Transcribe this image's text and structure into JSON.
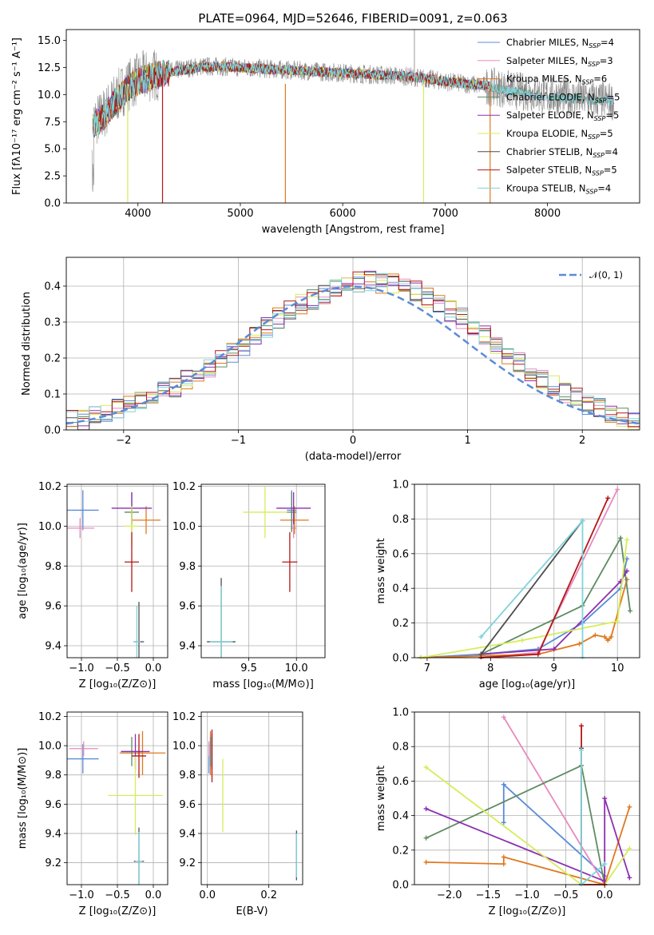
{
  "colors": {
    "c1": "#5b8bd9",
    "c2": "#e68ac0",
    "c3": "#e0781f",
    "c4": "#5e8c61",
    "c5": "#8b2fb0",
    "c6": "#d7ec5a",
    "c7": "#4d4d4d",
    "c8": "#b51717",
    "c9": "#7fd3da",
    "gauss": "#5b8bd9",
    "grid": "#b0b0b0"
  },
  "chart_data": [
    {
      "id": "spectrum",
      "type": "line",
      "title": "PLATE=0964, MJD=52646, FIBERID=0091, z=0.063",
      "xlabel": "wavelength [Angstrom, rest frame]",
      "ylabel": "Flux [fλ10⁻¹⁷ erg cm⁻² s⁻¹ A⁻¹]",
      "xlim": [
        3300,
        8900
      ],
      "ylim": [
        0,
        16
      ],
      "xticks": [
        "4000",
        "5000",
        "6000",
        "7000",
        "8000"
      ],
      "yticks": [
        "0.0",
        "2.5",
        "5.0",
        "7.5",
        "10.0",
        "12.5",
        "15.0"
      ],
      "grid": false,
      "legend_position": "top-right",
      "data_continuum": [
        [
          3550,
          7.4
        ],
        [
          3650,
          8.0
        ],
        [
          3750,
          9.3
        ],
        [
          3850,
          10.4
        ],
        [
          3950,
          11.2
        ],
        [
          4050,
          11.6
        ],
        [
          4200,
          11.9
        ],
        [
          4400,
          12.3
        ],
        [
          4600,
          12.6
        ],
        [
          4800,
          12.6
        ],
        [
          5000,
          12.5
        ],
        [
          5200,
          12.4
        ],
        [
          5400,
          12.3
        ],
        [
          5600,
          12.2
        ],
        [
          5800,
          12.1
        ],
        [
          6000,
          12.0
        ],
        [
          6200,
          11.9
        ],
        [
          6400,
          11.8
        ],
        [
          6600,
          11.7
        ],
        [
          6800,
          11.5
        ],
        [
          7000,
          11.2
        ],
        [
          7200,
          11.0
        ],
        [
          7400,
          10.8
        ],
        [
          7600,
          10.5
        ],
        [
          7800,
          10.2
        ],
        [
          8000,
          9.9
        ],
        [
          8200,
          9.8
        ],
        [
          8400,
          9.6
        ],
        [
          8600,
          9.4
        ]
      ],
      "model_continuum": [
        [
          3550,
          7.2
        ],
        [
          3650,
          7.8
        ],
        [
          3750,
          9.0
        ],
        [
          3850,
          10.1
        ],
        [
          3950,
          10.9
        ],
        [
          4050,
          11.4
        ],
        [
          4200,
          11.8
        ],
        [
          4400,
          12.2
        ],
        [
          4600,
          12.5
        ],
        [
          4800,
          12.6
        ],
        [
          5000,
          12.5
        ],
        [
          5200,
          12.4
        ],
        [
          5400,
          12.3
        ],
        [
          5600,
          12.2
        ],
        [
          5800,
          12.1
        ],
        [
          6000,
          12.0
        ],
        [
          6200,
          11.9
        ],
        [
          6400,
          11.8
        ],
        [
          6600,
          11.7
        ],
        [
          6800,
          11.5
        ],
        [
          7000,
          11.2
        ],
        [
          7200,
          11.0
        ],
        [
          7400,
          10.8
        ],
        [
          7500,
          10.6
        ]
      ],
      "legend": [
        {
          "label": "Chabrier MILES, N",
          "sub": "SSP",
          "suffix": "=4",
          "color": "#5b8bd9"
        },
        {
          "label": "Salpeter MILES, N",
          "sub": "SSP",
          "suffix": "=3",
          "color": "#e68ac0"
        },
        {
          "label": "Kroupa MILES, N",
          "sub": "SSP",
          "suffix": "=6",
          "color": "#e0781f"
        },
        {
          "label": "Chabrier ELODIE, N",
          "sub": "SSP",
          "suffix": "=5",
          "color": "#5e8c61"
        },
        {
          "label": "Salpeter ELODIE, N",
          "sub": "SSP",
          "suffix": "=5",
          "color": "#8b2fb0"
        },
        {
          "label": "Kroupa ELODIE, N",
          "sub": "SSP",
          "suffix": "=5",
          "color": "#d7ec5a"
        },
        {
          "label": "Chabrier STELIB, N",
          "sub": "SSP",
          "suffix": "=4",
          "color": "#4d4d4d"
        },
        {
          "label": "Salpeter STELIB, N",
          "sub": "SSP",
          "suffix": "=5",
          "color": "#b51717"
        },
        {
          "label": "Kroupa STELIB, N",
          "sub": "SSP",
          "suffix": "=4",
          "color": "#7fd3da"
        }
      ]
    },
    {
      "id": "residual_hist",
      "type": "line",
      "xlabel": "(data-model)/error",
      "ylabel": "Normed distribution",
      "xlim": [
        -2.5,
        2.5
      ],
      "ylim": [
        0,
        0.48
      ],
      "xticks": [
        "−2",
        "−1",
        "0",
        "1",
        "2"
      ],
      "xtick_values": [
        -2,
        -1,
        0,
        1,
        2
      ],
      "yticks": [
        "0.0",
        "0.1",
        "0.2",
        "0.3",
        "0.4"
      ],
      "ytick_values": [
        0,
        0.1,
        0.2,
        0.3,
        0.4
      ],
      "grid": true,
      "legend": {
        "label": "𝒩(0, 1)",
        "position": "top-right"
      },
      "bin_width": 0.1,
      "bin_start": -2.5,
      "base_heights": [
        0.025,
        0.028,
        0.035,
        0.045,
        0.058,
        0.07,
        0.085,
        0.1,
        0.11,
        0.12,
        0.14,
        0.155,
        0.175,
        0.195,
        0.215,
        0.235,
        0.26,
        0.285,
        0.31,
        0.33,
        0.35,
        0.365,
        0.375,
        0.39,
        0.405,
        0.41,
        0.415,
        0.41,
        0.405,
        0.4,
        0.385,
        0.37,
        0.355,
        0.33,
        0.31,
        0.285,
        0.26,
        0.235,
        0.21,
        0.19,
        0.165,
        0.145,
        0.125,
        0.105,
        0.09,
        0.072,
        0.06,
        0.045,
        0.035,
        0.025
      ]
    },
    {
      "id": "age_vs_Z",
      "type": "scatter",
      "xlabel": "Z [log₁₀(Z/Z⊙)]",
      "ylabel": "age  [log₁₀(age/yr)]",
      "xlim": [
        -1.2,
        0.2
      ],
      "ylim": [
        9.34,
        10.21
      ],
      "xticks": [
        "−1.0",
        "−0.5",
        "0.0"
      ],
      "xtick_values": [
        -1.0,
        -0.5,
        0.0
      ],
      "yticks": [
        "9.4",
        "9.6",
        "9.8",
        "10.0",
        "10.2"
      ],
      "ytick_values": [
        9.4,
        9.6,
        9.8,
        10.0,
        10.2
      ],
      "grid": true,
      "points": [
        {
          "x": -0.98,
          "y": 10.08,
          "ex": 0.22,
          "ey": 0.1,
          "color": "#5b8bd9"
        },
        {
          "x": -1.02,
          "y": 9.99,
          "ex": 0.2,
          "ey": 0.05,
          "color": "#e68ac0"
        },
        {
          "x": -0.1,
          "y": 10.03,
          "ex": 0.2,
          "ey": 0.07,
          "color": "#e0781f"
        },
        {
          "x": -0.3,
          "y": 10.07,
          "ex": 0.1,
          "ey": 0.1,
          "color": "#5e8c61"
        },
        {
          "x": -0.3,
          "y": 10.09,
          "ex": 0.28,
          "ey": 0.08,
          "color": "#8b2fb0"
        },
        {
          "x": -0.3,
          "y": 10.0,
          "ex": 0.1,
          "ey": 0.1,
          "color": "#d7ec5a"
        },
        {
          "x": -0.2,
          "y": 9.42,
          "ex": 0.07,
          "ey": 0.2,
          "color": "#4d4d4d"
        },
        {
          "x": -0.3,
          "y": 9.82,
          "ex": 0.1,
          "ey": 0.15,
          "color": "#b51717"
        },
        {
          "x": -0.23,
          "y": 9.42,
          "ex": 0.05,
          "ey": 0.18,
          "color": "#7fd3da"
        }
      ]
    },
    {
      "id": "age_vs_mass",
      "type": "scatter",
      "xlabel": "mass [log₁₀(M/M⊙)]",
      "xlim": [
        9.0,
        10.3
      ],
      "ylim": [
        9.34,
        10.21
      ],
      "xticks": [
        "9.5",
        "10.0"
      ],
      "xtick_values": [
        9.5,
        10.0
      ],
      "yticks": [
        "9.4",
        "9.6",
        "9.8",
        "10.0",
        "10.2"
      ],
      "ytick_values": [
        9.4,
        9.6,
        9.8,
        10.0,
        10.2
      ],
      "grid": true,
      "points": [
        {
          "x": 9.95,
          "y": 10.08,
          "ex": 0.05,
          "ey": 0.1,
          "color": "#5b8bd9"
        },
        {
          "x": 9.97,
          "y": 9.99,
          "ex": 0.03,
          "ey": 0.05,
          "color": "#e68ac0"
        },
        {
          "x": 9.98,
          "y": 10.03,
          "ex": 0.15,
          "ey": 0.07,
          "color": "#e0781f"
        },
        {
          "x": 9.95,
          "y": 10.07,
          "ex": 0.05,
          "ey": 0.1,
          "color": "#5e8c61"
        },
        {
          "x": 9.97,
          "y": 10.09,
          "ex": 0.18,
          "ey": 0.08,
          "color": "#8b2fb0"
        },
        {
          "x": 9.67,
          "y": 10.07,
          "ex": 0.23,
          "ey": 0.13,
          "color": "#d7ec5a"
        },
        {
          "x": 9.21,
          "y": 9.42,
          "ex": 0.15,
          "ey": 0.32,
          "color": "#4d4d4d"
        },
        {
          "x": 9.93,
          "y": 9.82,
          "ex": 0.08,
          "ey": 0.15,
          "color": "#b51717"
        },
        {
          "x": 9.21,
          "y": 9.42,
          "ex": 0.12,
          "ey": 0.28,
          "color": "#7fd3da"
        }
      ]
    },
    {
      "id": "mass_vs_Z",
      "type": "scatter",
      "xlabel": "Z [log₁₀(Z/Z⊙)]",
      "ylabel": "mass [log₁₀(M/M⊙)]",
      "xlim": [
        -1.2,
        0.2
      ],
      "ylim": [
        9.05,
        10.23
      ],
      "xticks": [
        "−1.0",
        "−0.5",
        "0.0"
      ],
      "xtick_values": [
        -1.0,
        -0.5,
        0.0
      ],
      "yticks": [
        "9.2",
        "9.4",
        "9.6",
        "9.8",
        "10.0",
        "10.2"
      ],
      "ytick_values": [
        9.2,
        9.4,
        9.6,
        9.8,
        10.0,
        10.2
      ],
      "grid": true,
      "points": [
        {
          "x": -0.98,
          "y": 9.91,
          "ex": 0.22,
          "ey": 0.1,
          "color": "#5b8bd9"
        },
        {
          "x": -0.97,
          "y": 9.98,
          "ex": 0.2,
          "ey": 0.05,
          "color": "#e68ac0"
        },
        {
          "x": -0.15,
          "y": 9.95,
          "ex": 0.32,
          "ey": 0.15,
          "color": "#e0781f"
        },
        {
          "x": -0.3,
          "y": 9.96,
          "ex": 0.15,
          "ey": 0.1,
          "color": "#5e8c61"
        },
        {
          "x": -0.25,
          "y": 9.96,
          "ex": 0.2,
          "ey": 0.12,
          "color": "#8b2fb0"
        },
        {
          "x": -0.25,
          "y": 9.66,
          "ex": 0.38,
          "ey": 0.27,
          "color": "#d7ec5a"
        },
        {
          "x": -0.2,
          "y": 9.21,
          "ex": 0.07,
          "ey": 0.23,
          "color": "#4d4d4d"
        },
        {
          "x": -0.2,
          "y": 9.93,
          "ex": 0.1,
          "ey": 0.15,
          "color": "#b51717"
        },
        {
          "x": -0.2,
          "y": 9.21,
          "ex": 0.05,
          "ey": 0.2,
          "color": "#7fd3da"
        }
      ]
    },
    {
      "id": "mass_vs_ebv",
      "type": "scatter",
      "xlabel": "E(B-V)",
      "xlim": [
        -0.02,
        0.31
      ],
      "ylim": [
        9.05,
        10.23
      ],
      "xticks": [
        "0.0",
        "0.2"
      ],
      "xtick_values": [
        0.0,
        0.2
      ],
      "yticks": [
        "9.2",
        "9.4",
        "9.6",
        "9.8",
        "10.0",
        "10.2"
      ],
      "ytick_values": [
        9.2,
        9.4,
        9.6,
        9.8,
        10.0,
        10.2
      ],
      "grid": true,
      "points": [
        {
          "x": 0.005,
          "y": 9.91,
          "ex": 0.0,
          "ey": 0.1,
          "color": "#5b8bd9"
        },
        {
          "x": 0.005,
          "y": 9.98,
          "ex": 0.0,
          "ey": 0.05,
          "color": "#e68ac0"
        },
        {
          "x": 0.01,
          "y": 9.95,
          "ex": 0.0,
          "ey": 0.15,
          "color": "#e0781f"
        },
        {
          "x": 0.01,
          "y": 9.96,
          "ex": 0.0,
          "ey": 0.1,
          "color": "#5e8c61"
        },
        {
          "x": 0.015,
          "y": 9.96,
          "ex": 0.0,
          "ey": 0.12,
          "color": "#8b2fb0"
        },
        {
          "x": 0.05,
          "y": 9.66,
          "ex": 0.0,
          "ey": 0.25,
          "color": "#d7ec5a"
        },
        {
          "x": 0.29,
          "y": 9.25,
          "ex": 0.0,
          "ey": 0.17,
          "color": "#4d4d4d"
        },
        {
          "x": 0.015,
          "y": 9.93,
          "ex": 0.0,
          "ey": 0.18,
          "color": "#b51717"
        },
        {
          "x": 0.29,
          "y": 9.25,
          "ex": 0.0,
          "ey": 0.15,
          "color": "#7fd3da"
        }
      ]
    },
    {
      "id": "massweight_vs_age",
      "type": "line",
      "xlabel": "age  [log₁₀(age/yr)]",
      "ylabel": "mass weight",
      "xlim": [
        6.8,
        10.35
      ],
      "ylim": [
        0,
        1.0
      ],
      "xticks": [
        "7",
        "8",
        "9",
        "10"
      ],
      "xtick_values": [
        7,
        8,
        9,
        10
      ],
      "yticks": [
        "0.0",
        "0.2",
        "0.4",
        "0.6",
        "0.8",
        "1.0"
      ],
      "ytick_values": [
        0,
        0.2,
        0.4,
        0.6,
        0.8,
        1.0
      ],
      "grid": true,
      "series": [
        {
          "color": "#5b8bd9",
          "x": [
            6.9,
            7.85,
            8.75,
            9.45,
            10.05,
            10.15
          ],
          "y": [
            0.0,
            0.02,
            0.05,
            0.2,
            0.4,
            0.57
          ]
        },
        {
          "color": "#e68ac0",
          "x": [
            7.85,
            8.75,
            10.0
          ],
          "y": [
            0.0,
            0.03,
            0.97
          ]
        },
        {
          "color": "#e0781f",
          "x": [
            6.9,
            8.75,
            9.4,
            9.65,
            9.8,
            9.85,
            9.9,
            10.15
          ],
          "y": [
            0.0,
            0.02,
            0.08,
            0.13,
            0.12,
            0.1,
            0.12,
            0.45
          ]
        },
        {
          "color": "#5e8c61",
          "x": [
            7.85,
            9.45,
            10.05,
            10.2
          ],
          "y": [
            0.02,
            0.3,
            0.69,
            0.27
          ]
        },
        {
          "color": "#8b2fb0",
          "x": [
            7.85,
            9.0,
            10.05,
            10.15
          ],
          "y": [
            0.02,
            0.05,
            0.44,
            0.5
          ]
        },
        {
          "color": "#d7ec5a",
          "x": [
            6.9,
            8.5,
            10.0,
            10.15
          ],
          "y": [
            0.0,
            0.1,
            0.21,
            0.68
          ]
        },
        {
          "color": "#4d4d4d",
          "x": [
            7.85,
            9.45
          ],
          "y": [
            0.02,
            0.79
          ]
        },
        {
          "color": "#b51717",
          "x": [
            7.85,
            8.75,
            9.85
          ],
          "y": [
            0.0,
            0.02,
            0.92
          ]
        },
        {
          "color": "#7fd3da",
          "x": [
            7.85,
            9.45,
            9.45
          ],
          "y": [
            0.12,
            0.79,
            0.0
          ]
        }
      ]
    },
    {
      "id": "massweight_vs_Z",
      "type": "line",
      "xlabel": "Z [log₁₀(Z/Z⊙)]",
      "ylabel": "mass weight",
      "xlim": [
        -2.45,
        0.45
      ],
      "ylim": [
        0,
        1.0
      ],
      "xticks": [
        "−2.0",
        "−1.5",
        "−1.0",
        "−0.5",
        "0.0"
      ],
      "xtick_values": [
        -2.0,
        -1.5,
        -1.0,
        -0.5,
        0.0
      ],
      "yticks": [
        "0.0",
        "0.2",
        "0.4",
        "0.6",
        "0.8",
        "1.0"
      ],
      "ytick_values": [
        0,
        0.2,
        0.4,
        0.6,
        0.8,
        1.0
      ],
      "grid": true,
      "series": [
        {
          "color": "#5b8bd9",
          "x": [
            -1.3,
            -1.3,
            0.0,
            0.0
          ],
          "y": [
            0.36,
            0.58,
            0.05,
            0.0
          ]
        },
        {
          "color": "#e68ac0",
          "x": [
            -1.3,
            0.0
          ],
          "y": [
            0.97,
            0.0
          ]
        },
        {
          "color": "#e0781f",
          "x": [
            -2.3,
            -1.3,
            -1.3,
            0.0,
            0.32
          ],
          "y": [
            0.13,
            0.12,
            0.16,
            0.0,
            0.45
          ]
        },
        {
          "color": "#5e8c61",
          "x": [
            -2.3,
            -0.3,
            0.0
          ],
          "y": [
            0.27,
            0.69,
            0.0
          ]
        },
        {
          "color": "#8b2fb0",
          "x": [
            -2.3,
            0.0,
            0.0,
            0.32
          ],
          "y": [
            0.44,
            0.02,
            0.5,
            0.04
          ]
        },
        {
          "color": "#d7ec5a",
          "x": [
            -2.3,
            -0.3,
            0.0,
            0.32
          ],
          "y": [
            0.68,
            0.0,
            0.0,
            0.21
          ]
        },
        {
          "color": "#4d4d4d",
          "x": [
            -0.3,
            -0.3
          ],
          "y": [
            0.0,
            0.79
          ]
        },
        {
          "color": "#b51717",
          "x": [
            -0.3,
            -0.3,
            0.0
          ],
          "y": [
            0.92,
            0.0,
            0.0
          ]
        },
        {
          "color": "#7fd3da",
          "x": [
            -0.3,
            -0.3,
            0.0
          ],
          "y": [
            0.78,
            0.0,
            0.12
          ]
        }
      ]
    }
  ]
}
